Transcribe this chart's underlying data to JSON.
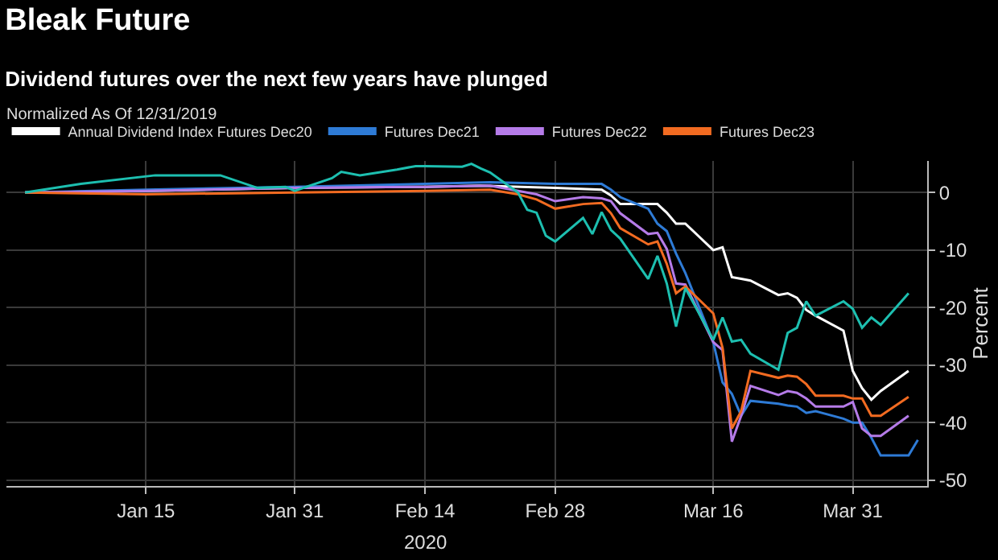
{
  "chart_data": {
    "type": "line",
    "title": "Bleak Future",
    "subtitle": "Dividend futures over the next few years have plunged",
    "legend_title": "Normalized As Of 12/31/2019",
    "ylabel": "Percent",
    "annotations": [
      "2020"
    ],
    "xlim": [
      "2019-12-31",
      "2020-04-08"
    ],
    "xticks": [
      {
        "value": "2020-01-15",
        "label": "Jan 15"
      },
      {
        "value": "2020-01-31",
        "label": "Jan 31"
      },
      {
        "value": "2020-02-14",
        "label": "Feb 14"
      },
      {
        "value": "2020-02-28",
        "label": "Feb 28"
      },
      {
        "value": "2020-03-16",
        "label": "Mar 16"
      },
      {
        "value": "2020-03-31",
        "label": "Mar 31"
      }
    ],
    "ylim": [
      -51,
      5.5
    ],
    "yticks": [
      0,
      -10,
      -20,
      -30,
      -40,
      -50
    ],
    "grid": true,
    "legend": "top",
    "marker": "none",
    "line_style": "solid",
    "series": [
      {
        "name": "Annual Dividend Index Futures Dec20",
        "color": "#ffffff",
        "x": [
          "2020-01-02",
          "2020-01-15",
          "2020-01-31",
          "2020-02-14",
          "2020-02-20",
          "2020-02-28",
          "2020-03-04",
          "2020-03-05",
          "2020-03-06",
          "2020-03-09",
          "2020-03-10",
          "2020-03-11",
          "2020-03-12",
          "2020-03-13",
          "2020-03-16",
          "2020-03-17",
          "2020-03-18",
          "2020-03-19",
          "2020-03-20",
          "2020-03-23",
          "2020-03-24",
          "2020-03-25",
          "2020-03-26",
          "2020-03-27",
          "2020-03-30",
          "2020-03-31",
          "2020-04-01",
          "2020-04-02",
          "2020-04-03",
          "2020-04-06"
        ],
        "values": [
          0,
          0.3,
          0.8,
          1,
          1.2,
          0.8,
          0.5,
          -0.5,
          -2,
          -2,
          -2,
          -3.5,
          -5.4,
          -5.4,
          -10,
          -9.5,
          -14.7,
          -15,
          -15.3,
          -17.8,
          -17.5,
          -18.3,
          -20.4,
          -21.4,
          -24,
          -31,
          -34,
          -36,
          -34.5,
          -31
        ]
      },
      {
        "name": "Futures Dec21",
        "color": "#2e7bd6",
        "x": [
          "2020-01-02",
          "2020-01-15",
          "2020-01-31",
          "2020-02-14",
          "2020-02-21",
          "2020-02-28",
          "2020-03-04",
          "2020-03-05",
          "2020-03-06",
          "2020-03-09",
          "2020-03-10",
          "2020-03-11",
          "2020-03-12",
          "2020-03-13",
          "2020-03-16",
          "2020-03-17",
          "2020-03-18",
          "2020-03-19",
          "2020-03-20",
          "2020-03-23",
          "2020-03-24",
          "2020-03-25",
          "2020-03-26",
          "2020-03-27",
          "2020-03-30",
          "2020-03-31",
          "2020-04-01",
          "2020-04-02",
          "2020-04-03",
          "2020-04-06",
          "2020-04-07"
        ],
        "values": [
          0,
          0.5,
          1,
          1.5,
          1.8,
          1.5,
          1.5,
          0.5,
          -0.8,
          -2.8,
          -5.4,
          -6.7,
          -10.6,
          -14,
          -26,
          -33,
          -35,
          -38.8,
          -36.2,
          -36.7,
          -37,
          -37.2,
          -38.3,
          -38,
          -39.3,
          -40,
          -40,
          -42.6,
          -45.7,
          -45.7,
          -43
        ]
      },
      {
        "name": "Futures Dec22",
        "color": "#b57be8",
        "x": [
          "2020-01-02",
          "2020-01-15",
          "2020-01-31",
          "2020-02-14",
          "2020-02-21",
          "2020-02-26",
          "2020-02-28",
          "2020-03-02",
          "2020-03-04",
          "2020-03-05",
          "2020-03-06",
          "2020-03-09",
          "2020-03-10",
          "2020-03-11",
          "2020-03-12",
          "2020-03-13",
          "2020-03-16",
          "2020-03-17",
          "2020-03-18",
          "2020-03-19",
          "2020-03-20",
          "2020-03-23",
          "2020-03-24",
          "2020-03-25",
          "2020-03-26",
          "2020-03-27",
          "2020-03-30",
          "2020-03-31",
          "2020-04-01",
          "2020-04-02",
          "2020-04-03",
          "2020-04-06"
        ],
        "values": [
          0,
          0.3,
          0.8,
          1,
          1.2,
          -0.3,
          -1.5,
          -0.8,
          -1,
          -1.5,
          -3.6,
          -7.2,
          -7,
          -9.8,
          -15.8,
          -16,
          -26,
          -27.4,
          -43.3,
          -38.8,
          -33.6,
          -35.2,
          -34.5,
          -34.8,
          -35.8,
          -37.2,
          -37.2,
          -36.4,
          -41,
          -42.3,
          -42.3,
          -38.8
        ]
      },
      {
        "name": "Futures Dec23",
        "color": "#f26b21",
        "x": [
          "2020-01-02",
          "2020-01-15",
          "2020-01-31",
          "2020-02-14",
          "2020-02-21",
          "2020-02-24",
          "2020-02-26",
          "2020-02-28",
          "2020-03-02",
          "2020-03-04",
          "2020-03-05",
          "2020-03-06",
          "2020-03-09",
          "2020-03-10",
          "2020-03-11",
          "2020-03-12",
          "2020-03-13",
          "2020-03-16",
          "2020-03-17",
          "2020-03-18",
          "2020-03-19",
          "2020-03-20",
          "2020-03-23",
          "2020-03-24",
          "2020-03-25",
          "2020-03-26",
          "2020-03-27",
          "2020-03-30",
          "2020-03-31",
          "2020-04-01",
          "2020-04-02",
          "2020-04-03",
          "2020-04-06"
        ],
        "values": [
          0,
          -0.3,
          0,
          0.3,
          0.5,
          -0.3,
          -1.2,
          -2.8,
          -2,
          -1.8,
          -3.6,
          -6.2,
          -9,
          -8.5,
          -12.4,
          -17.5,
          -16.3,
          -21,
          -27,
          -41,
          -38,
          -31,
          -32.2,
          -31.8,
          -32,
          -33.3,
          -35.3,
          -35.3,
          -35.8,
          -35.8,
          -38.8,
          -38.8,
          -35.5
        ]
      },
      {
        "color": "#1dbfb0",
        "x": [
          "2020-01-02",
          "2020-01-08",
          "2020-01-16",
          "2020-01-21",
          "2020-01-23",
          "2020-01-27",
          "2020-01-30",
          "2020-01-31",
          "2020-02-04",
          "2020-02-05",
          "2020-02-07",
          "2020-02-11",
          "2020-02-13",
          "2020-02-14",
          "2020-02-18",
          "2020-02-19",
          "2020-02-20",
          "2020-02-21",
          "2020-02-24",
          "2020-02-25",
          "2020-02-26",
          "2020-02-27",
          "2020-02-28",
          "2020-03-02",
          "2020-03-03",
          "2020-03-04",
          "2020-03-05",
          "2020-03-06",
          "2020-03-09",
          "2020-03-10",
          "2020-03-11",
          "2020-03-12",
          "2020-03-13",
          "2020-03-16",
          "2020-03-17",
          "2020-03-18",
          "2020-03-19",
          "2020-03-20",
          "2020-03-23",
          "2020-03-24",
          "2020-03-25",
          "2020-03-26",
          "2020-03-27",
          "2020-03-30",
          "2020-03-31",
          "2020-04-01",
          "2020-04-02",
          "2020-04-03",
          "2020-04-06"
        ],
        "values": [
          0,
          1.5,
          3,
          3,
          3,
          0.8,
          1,
          0.3,
          2.5,
          3.6,
          3,
          4,
          4.6,
          4.6,
          4.5,
          5,
          4.2,
          3.5,
          0,
          -3,
          -3.5,
          -7.5,
          -8.5,
          -4.4,
          -7.2,
          -3.4,
          -6.5,
          -8,
          -15,
          -11,
          -15.8,
          -23.3,
          -16.6,
          -25.6,
          -21.7,
          -25.9,
          -25.6,
          -28,
          -30.8,
          -24.4,
          -23.5,
          -18.9,
          -21.4,
          -18.9,
          -20.2,
          -23.5,
          -21.7,
          -23,
          -17.5
        ]
      }
    ]
  }
}
